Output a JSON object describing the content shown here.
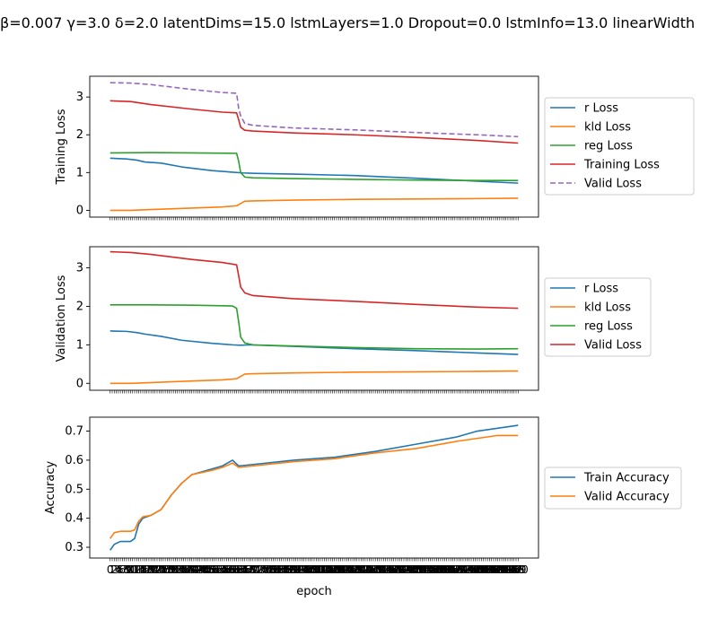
{
  "figure": {
    "title": "β=0.007 γ=3.0 δ=2.0 latentDims=15.0 lstmLayers=1.0 Dropout=0.0 lstmInfo=13.0 linearWidth"
  },
  "colors": {
    "blue": "#1f77b4",
    "orange": "#ff7f0e",
    "green": "#2ca02c",
    "red": "#d62728",
    "purple": "#9467bd"
  },
  "chart_data": [
    {
      "type": "line",
      "id": "training",
      "ylabel": "Training Loss",
      "xlabel": "",
      "ylim": [
        -0.18,
        3.55
      ],
      "yticks": [
        0,
        1,
        2,
        3
      ],
      "xlim": [
        -10,
        210
      ],
      "legend_placement": "right",
      "series": [
        {
          "name": "r Loss",
          "color": "#1f77b4",
          "dashed": false,
          "points": [
            [
              0,
              1.38
            ],
            [
              8,
              1.36
            ],
            [
              13,
              1.33
            ],
            [
              17,
              1.28
            ],
            [
              25,
              1.25
            ],
            [
              35,
              1.15
            ],
            [
              50,
              1.05
            ],
            [
              60,
              1.01
            ],
            [
              65,
              0.99
            ],
            [
              70,
              0.98
            ],
            [
              90,
              0.96
            ],
            [
              120,
              0.92
            ],
            [
              150,
              0.85
            ],
            [
              180,
              0.77
            ],
            [
              200,
              0.72
            ]
          ]
        },
        {
          "name": "kld Loss",
          "color": "#ff7f0e",
          "dashed": false,
          "points": [
            [
              0,
              0.0
            ],
            [
              10,
              0.0
            ],
            [
              20,
              0.02
            ],
            [
              40,
              0.06
            ],
            [
              55,
              0.09
            ],
            [
              62,
              0.12
            ],
            [
              64,
              0.18
            ],
            [
              66,
              0.24
            ],
            [
              70,
              0.25
            ],
            [
              90,
              0.27
            ],
            [
              120,
              0.29
            ],
            [
              150,
              0.3
            ],
            [
              180,
              0.31
            ],
            [
              200,
              0.32
            ]
          ]
        },
        {
          "name": "reg Loss",
          "color": "#2ca02c",
          "dashed": false,
          "points": [
            [
              0,
              1.52
            ],
            [
              20,
              1.53
            ],
            [
              40,
              1.52
            ],
            [
              62,
              1.51
            ],
            [
              63,
              1.3
            ],
            [
              64,
              1.0
            ],
            [
              66,
              0.88
            ],
            [
              70,
              0.86
            ],
            [
              90,
              0.84
            ],
            [
              120,
              0.82
            ],
            [
              150,
              0.8
            ],
            [
              180,
              0.79
            ],
            [
              200,
              0.79
            ]
          ]
        },
        {
          "name": "Training Loss",
          "color": "#d62728",
          "dashed": false,
          "points": [
            [
              0,
              2.9
            ],
            [
              10,
              2.88
            ],
            [
              20,
              2.8
            ],
            [
              40,
              2.68
            ],
            [
              55,
              2.6
            ],
            [
              62,
              2.58
            ],
            [
              63,
              2.4
            ],
            [
              64,
              2.2
            ],
            [
              66,
              2.12
            ],
            [
              70,
              2.1
            ],
            [
              90,
              2.05
            ],
            [
              120,
              2.0
            ],
            [
              150,
              1.93
            ],
            [
              180,
              1.85
            ],
            [
              200,
              1.78
            ]
          ]
        },
        {
          "name": "Valid Loss",
          "color": "#9467bd",
          "dashed": true,
          "points": [
            [
              0,
              3.38
            ],
            [
              10,
              3.37
            ],
            [
              20,
              3.33
            ],
            [
              40,
              3.2
            ],
            [
              55,
              3.12
            ],
            [
              62,
              3.1
            ],
            [
              63,
              2.7
            ],
            [
              64,
              2.5
            ],
            [
              66,
              2.3
            ],
            [
              70,
              2.25
            ],
            [
              90,
              2.18
            ],
            [
              120,
              2.13
            ],
            [
              150,
              2.06
            ],
            [
              180,
              2.0
            ],
            [
              200,
              1.95
            ]
          ]
        }
      ]
    },
    {
      "type": "line",
      "id": "validation",
      "ylabel": "Validation Loss",
      "xlabel": "",
      "ylim": [
        -0.18,
        3.55
      ],
      "yticks": [
        0,
        1,
        2,
        3
      ],
      "xlim": [
        -10,
        210
      ],
      "legend_placement": "right",
      "series": [
        {
          "name": "r Loss",
          "color": "#1f77b4",
          "dashed": false,
          "points": [
            [
              0,
              1.36
            ],
            [
              8,
              1.35
            ],
            [
              13,
              1.32
            ],
            [
              17,
              1.28
            ],
            [
              25,
              1.22
            ],
            [
              35,
              1.12
            ],
            [
              50,
              1.04
            ],
            [
              60,
              1.0
            ],
            [
              64,
              0.99
            ],
            [
              68,
              1.0
            ],
            [
              90,
              0.96
            ],
            [
              120,
              0.9
            ],
            [
              150,
              0.85
            ],
            [
              180,
              0.79
            ],
            [
              200,
              0.75
            ]
          ]
        },
        {
          "name": "kld Loss",
          "color": "#ff7f0e",
          "dashed": false,
          "points": [
            [
              0,
              0.0
            ],
            [
              10,
              0.0
            ],
            [
              20,
              0.02
            ],
            [
              40,
              0.06
            ],
            [
              55,
              0.09
            ],
            [
              62,
              0.12
            ],
            [
              64,
              0.18
            ],
            [
              66,
              0.24
            ],
            [
              70,
              0.25
            ],
            [
              90,
              0.27
            ],
            [
              120,
              0.29
            ],
            [
              150,
              0.3
            ],
            [
              180,
              0.31
            ],
            [
              200,
              0.32
            ]
          ]
        },
        {
          "name": "reg Loss",
          "color": "#2ca02c",
          "dashed": false,
          "points": [
            [
              0,
              2.04
            ],
            [
              20,
              2.04
            ],
            [
              40,
              2.03
            ],
            [
              60,
              2.01
            ],
            [
              62,
              1.95
            ],
            [
              63,
              1.6
            ],
            [
              64,
              1.2
            ],
            [
              66,
              1.05
            ],
            [
              70,
              1.0
            ],
            [
              90,
              0.97
            ],
            [
              120,
              0.93
            ],
            [
              150,
              0.9
            ],
            [
              180,
              0.89
            ],
            [
              200,
              0.9
            ]
          ]
        },
        {
          "name": "Valid Loss",
          "color": "#d62728",
          "dashed": false,
          "points": [
            [
              0,
              3.42
            ],
            [
              10,
              3.4
            ],
            [
              20,
              3.35
            ],
            [
              40,
              3.22
            ],
            [
              55,
              3.14
            ],
            [
              62,
              3.08
            ],
            [
              63,
              2.8
            ],
            [
              64,
              2.5
            ],
            [
              66,
              2.35
            ],
            [
              70,
              2.28
            ],
            [
              90,
              2.2
            ],
            [
              120,
              2.13
            ],
            [
              150,
              2.05
            ],
            [
              180,
              1.98
            ],
            [
              200,
              1.95
            ]
          ]
        }
      ]
    },
    {
      "type": "line",
      "id": "accuracy",
      "ylabel": "Accuracy",
      "xlabel": "epoch",
      "ylim": [
        0.263,
        0.748
      ],
      "yticks": [
        0.3,
        0.4,
        0.5,
        0.6,
        0.7
      ],
      "xlim": [
        -10,
        210
      ],
      "legend_placement": "right",
      "series": [
        {
          "name": "Train Accuracy",
          "color": "#1f77b4",
          "dashed": false,
          "points": [
            [
              0,
              0.29
            ],
            [
              2,
              0.31
            ],
            [
              5,
              0.32
            ],
            [
              10,
              0.32
            ],
            [
              12,
              0.33
            ],
            [
              14,
              0.38
            ],
            [
              16,
              0.4
            ],
            [
              20,
              0.41
            ],
            [
              25,
              0.43
            ],
            [
              30,
              0.48
            ],
            [
              35,
              0.52
            ],
            [
              40,
              0.55
            ],
            [
              50,
              0.57
            ],
            [
              55,
              0.58
            ],
            [
              60,
              0.6
            ],
            [
              63,
              0.58
            ],
            [
              70,
              0.585
            ],
            [
              90,
              0.6
            ],
            [
              110,
              0.61
            ],
            [
              130,
              0.63
            ],
            [
              150,
              0.655
            ],
            [
              170,
              0.68
            ],
            [
              180,
              0.7
            ],
            [
              190,
              0.71
            ],
            [
              200,
              0.72
            ]
          ]
        },
        {
          "name": "Valid Accuracy",
          "color": "#ff7f0e",
          "dashed": false,
          "points": [
            [
              0,
              0.33
            ],
            [
              2,
              0.35
            ],
            [
              5,
              0.355
            ],
            [
              10,
              0.355
            ],
            [
              12,
              0.36
            ],
            [
              14,
              0.39
            ],
            [
              16,
              0.405
            ],
            [
              20,
              0.41
            ],
            [
              25,
              0.43
            ],
            [
              30,
              0.48
            ],
            [
              35,
              0.52
            ],
            [
              40,
              0.55
            ],
            [
              50,
              0.565
            ],
            [
              55,
              0.575
            ],
            [
              60,
              0.59
            ],
            [
              63,
              0.575
            ],
            [
              70,
              0.58
            ],
            [
              90,
              0.595
            ],
            [
              110,
              0.605
            ],
            [
              130,
              0.625
            ],
            [
              150,
              0.64
            ],
            [
              170,
              0.665
            ],
            [
              180,
              0.675
            ],
            [
              190,
              0.685
            ],
            [
              200,
              0.685
            ]
          ]
        }
      ]
    }
  ]
}
